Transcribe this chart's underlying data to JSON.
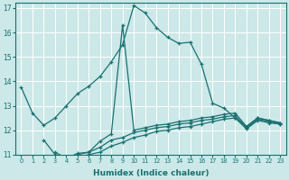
{
  "xlabel": "Humidex (Indice chaleur)",
  "ylabel": "",
  "bg_color": "#cce8e8",
  "grid_color": "#ffffff",
  "line_color": "#1a7070",
  "xlim": [
    -0.5,
    23.5
  ],
  "ylim": [
    11,
    17.2
  ],
  "yticks": [
    11,
    12,
    13,
    14,
    15,
    16,
    17
  ],
  "xticks": [
    0,
    1,
    2,
    3,
    4,
    5,
    6,
    7,
    8,
    9,
    10,
    11,
    12,
    13,
    14,
    15,
    16,
    17,
    18,
    19,
    20,
    21,
    22,
    23
  ],
  "lines": [
    {
      "x": [
        0,
        1,
        2,
        3,
        4,
        5,
        6,
        7,
        8,
        9,
        10,
        11,
        12,
        13,
        14,
        15,
        16,
        17,
        18,
        19,
        20,
        21,
        22,
        23
      ],
      "y": [
        13.75,
        12.7,
        12.2,
        12.5,
        13.0,
        13.5,
        13.8,
        14.2,
        14.8,
        15.5,
        17.1,
        16.8,
        16.2,
        15.8,
        15.55,
        15.6,
        14.7,
        13.1,
        12.9,
        12.5,
        12.15,
        12.5,
        12.4,
        12.3
      ]
    },
    {
      "x": [
        2,
        3,
        4,
        5,
        6,
        7,
        8,
        9,
        10,
        11,
        12,
        13,
        14,
        15,
        16,
        17,
        18,
        19,
        20,
        21,
        22,
        23
      ],
      "y": [
        11.6,
        11.0,
        10.85,
        11.05,
        11.1,
        11.55,
        11.85,
        16.3,
        12.0,
        12.1,
        12.2,
        12.25,
        12.35,
        12.4,
        12.5,
        12.55,
        12.65,
        12.7,
        12.15,
        12.5,
        12.4,
        12.3
      ]
    },
    {
      "x": [
        3,
        4,
        5,
        6,
        7,
        8,
        9,
        10,
        11,
        12,
        13,
        14,
        15,
        16,
        17,
        18,
        19,
        20,
        21,
        22,
        23
      ],
      "y": [
        11.0,
        10.8,
        11.0,
        11.1,
        11.3,
        11.6,
        11.7,
        11.9,
        12.0,
        12.1,
        12.15,
        12.25,
        12.3,
        12.4,
        12.45,
        12.55,
        12.6,
        12.1,
        12.45,
        12.35,
        12.25
      ]
    },
    {
      "x": [
        3,
        4,
        5,
        6,
        7,
        8,
        9,
        10,
        11,
        12,
        13,
        14,
        15,
        16,
        17,
        18,
        19,
        20,
        21,
        22,
        23
      ],
      "y": [
        11.1,
        10.85,
        10.9,
        11.0,
        11.1,
        11.35,
        11.5,
        11.7,
        11.8,
        11.95,
        12.0,
        12.1,
        12.15,
        12.25,
        12.35,
        12.45,
        12.5,
        12.05,
        12.4,
        12.3,
        12.25
      ]
    }
  ]
}
